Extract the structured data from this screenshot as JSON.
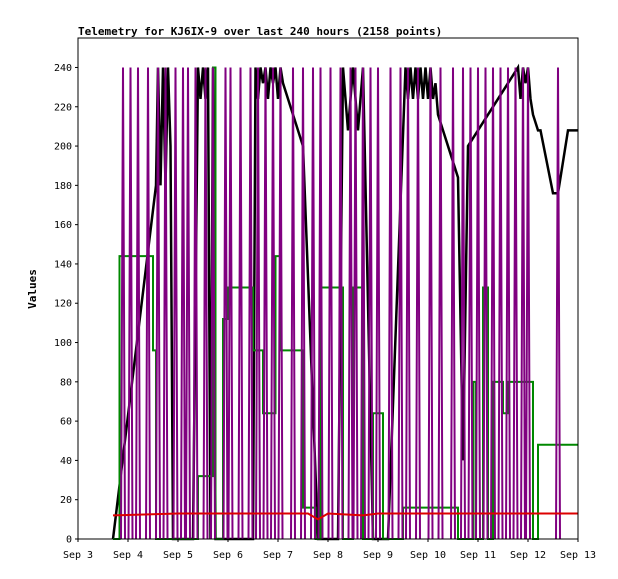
{
  "chart_data": {
    "type": "line",
    "title": "Telemetry for KJ6IX-9 over last 240 hours (2158 points)",
    "xlabel": "",
    "ylabel": "Values",
    "x_tick_labels": [
      "Sep 3",
      "Sep 4",
      "Sep 5",
      "Sep 6",
      "Sep 7",
      "Sep 8",
      "Sep 9",
      "Sep 10",
      "Sep 11",
      "Sep 12",
      "Sep 13"
    ],
    "xlim": [
      3,
      13
    ],
    "y_ticks": [
      0,
      20,
      40,
      60,
      80,
      100,
      120,
      140,
      160,
      180,
      200,
      220,
      240
    ],
    "ylim": [
      0,
      255
    ],
    "grid": false,
    "legend": "none",
    "series": [
      {
        "color": "#000000",
        "style": "bursts",
        "x": [
          3.7,
          4.56,
          4.6,
          4.65,
          4.7,
          4.75,
          4.8,
          4.85,
          4.9,
          5.3,
          5.4,
          5.45,
          5.5,
          5.55,
          5.6,
          5.65,
          5.7,
          5.75,
          6.5,
          6.55,
          6.6,
          6.65,
          6.7,
          6.75,
          6.8,
          6.85,
          6.9,
          6.95,
          7.0,
          7.05,
          7.1,
          7.2,
          7.3,
          7.4,
          7.5,
          7.8,
          7.9,
          8.2,
          8.3,
          8.4,
          8.5,
          8.6,
          8.7,
          8.9,
          9.0,
          9.1,
          9.2,
          9.55,
          9.6,
          9.65,
          9.7,
          9.75,
          9.8,
          9.85,
          9.9,
          9.95,
          10.0,
          10.05,
          10.1,
          10.15,
          10.2,
          10.3,
          10.4,
          10.5,
          10.6,
          10.7,
          10.8,
          11.8,
          11.85,
          11.9,
          11.95,
          12.0,
          12.05,
          12.1,
          12.2,
          12.25,
          12.5,
          12.6,
          12.7,
          12.8,
          13.0
        ],
        "y": [
          0,
          180,
          240,
          180,
          240,
          180,
          240,
          200,
          0,
          0,
          240,
          224,
          240,
          224,
          240,
          0,
          240,
          0,
          0,
          240,
          224,
          240,
          232,
          240,
          224,
          240,
          232,
          240,
          224,
          240,
          232,
          224,
          216,
          208,
          200,
          0,
          0,
          0,
          240,
          208,
          240,
          208,
          240,
          0,
          0,
          0,
          0,
          240,
          224,
          240,
          224,
          240,
          224,
          240,
          224,
          240,
          224,
          240,
          224,
          232,
          216,
          208,
          200,
          192,
          184,
          40,
          200,
          240,
          224,
          240,
          232,
          240,
          224,
          216,
          208,
          208,
          176,
          176,
          192,
          208,
          208
        ]
      },
      {
        "color": "#008800",
        "style": "step",
        "x": [
          3.7,
          3.83,
          3.88,
          4.33,
          4.5,
          4.56,
          4.9,
          5.4,
          5.6,
          5.7,
          5.75,
          5.9,
          6.0,
          6.1,
          6.5,
          6.7,
          6.95,
          7.05,
          7.2,
          7.5,
          7.75,
          7.85,
          8.0,
          8.2,
          8.3,
          8.5,
          8.7,
          8.8,
          8.9,
          9.1,
          9.5,
          9.6,
          10.4,
          10.6,
          10.9,
          10.95,
          11.1,
          11.2,
          11.3,
          11.5,
          11.6,
          11.7,
          12.0,
          12.1,
          12.2,
          13.0
        ],
        "y": [
          0,
          144,
          144,
          144,
          96,
          0,
          0,
          32,
          32,
          240,
          0,
          112,
          128,
          128,
          96,
          64,
          144,
          96,
          96,
          16,
          0,
          128,
          128,
          128,
          0,
          128,
          0,
          0,
          64,
          0,
          16,
          16,
          16,
          0,
          80,
          0,
          128,
          0,
          80,
          64,
          80,
          80,
          80,
          0,
          48,
          48
        ]
      },
      {
        "color": "#800080",
        "style": "spikes",
        "x": [
          3.9,
          4.05,
          4.2,
          4.4,
          4.6,
          4.75,
          4.95,
          5.1,
          5.2,
          5.35,
          5.55,
          5.7,
          5.95,
          6.05,
          6.25,
          6.45,
          6.6,
          6.75,
          6.9,
          7.05,
          7.3,
          7.5,
          7.7,
          7.85,
          8.05,
          8.25,
          8.45,
          8.55,
          8.7,
          8.85,
          9.0,
          9.25,
          9.45,
          9.6,
          9.8,
          10.05,
          10.25,
          10.5,
          10.7,
          10.85,
          11.0,
          11.15,
          11.3,
          11.45,
          11.6,
          11.75,
          11.9,
          12.0,
          12.6
        ],
        "y": [
          240,
          240,
          240,
          240,
          240,
          240,
          240,
          240,
          240,
          240,
          240,
          240,
          240,
          240,
          240,
          240,
          240,
          240,
          240,
          240,
          240,
          240,
          240,
          240,
          240,
          240,
          240,
          240,
          240,
          240,
          240,
          240,
          240,
          240,
          240,
          240,
          240,
          240,
          240,
          240,
          240,
          240,
          240,
          240,
          240,
          240,
          240,
          240,
          240
        ]
      },
      {
        "color": "#dd0000",
        "style": "line",
        "x": [
          3.7,
          5.0,
          6.0,
          7.0,
          7.6,
          7.8,
          8.0,
          8.7,
          9.0,
          10.0,
          10.5,
          11.0,
          12.0,
          13.0
        ],
        "y": [
          12,
          13,
          13,
          13,
          13,
          10,
          13,
          12,
          13,
          13,
          13,
          13,
          13,
          13
        ]
      }
    ]
  }
}
